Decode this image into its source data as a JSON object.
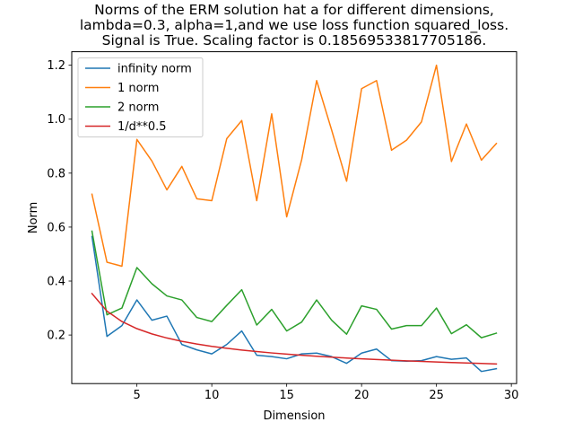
{
  "chart_data": {
    "type": "line",
    "title": [
      "Norms of the ERM solution hat a for different dimensions,",
      "lambda=0.3, alpha=1,and we use loss function squared_loss.",
      "Signal is True. Scaling factor is 0.18569533817705186."
    ],
    "xlabel": "Dimension",
    "ylabel": "Norm",
    "xlim": [
      0.65,
      30.35
    ],
    "ylim": [
      0.02,
      1.25
    ],
    "xticks": [
      5,
      10,
      15,
      20,
      25,
      30
    ],
    "yticks": [
      0.2,
      0.4,
      0.6,
      0.8,
      1.0,
      1.2
    ],
    "xtick_labels": [
      "5",
      "10",
      "15",
      "20",
      "25",
      "30"
    ],
    "ytick_labels": [
      "0.2",
      "0.4",
      "0.6",
      "0.8",
      "1.0",
      "1.2"
    ],
    "grid": false,
    "legend_position": "top-left",
    "x": [
      2,
      3,
      4,
      5,
      6,
      7,
      8,
      9,
      10,
      11,
      12,
      13,
      14,
      15,
      16,
      17,
      18,
      19,
      20,
      21,
      22,
      23,
      24,
      25,
      26,
      27,
      28,
      29
    ],
    "series": [
      {
        "name": "infinity norm",
        "color": "#1f77b4",
        "values": [
          0.565,
          0.195,
          0.235,
          0.33,
          0.255,
          0.27,
          0.165,
          0.145,
          0.13,
          0.165,
          0.215,
          0.125,
          0.12,
          0.112,
          0.13,
          0.133,
          0.12,
          0.095,
          0.133,
          0.148,
          0.105,
          0.103,
          0.105,
          0.12,
          0.11,
          0.115,
          0.065,
          0.075
        ]
      },
      {
        "name": "1 norm",
        "color": "#ff7f0e",
        "values": [
          0.722,
          0.47,
          0.455,
          0.925,
          0.845,
          0.738,
          0.825,
          0.705,
          0.698,
          0.928,
          0.995,
          0.698,
          1.02,
          0.638,
          0.85,
          1.143,
          0.96,
          0.77,
          1.113,
          1.143,
          0.885,
          0.922,
          0.99,
          1.2,
          0.843,
          0.982,
          0.848,
          0.91
        ]
      },
      {
        "name": "2 norm",
        "color": "#2ca02c",
        "values": [
          0.585,
          0.275,
          0.3,
          0.45,
          0.39,
          0.345,
          0.33,
          0.265,
          0.25,
          0.31,
          0.368,
          0.237,
          0.295,
          0.215,
          0.248,
          0.33,
          0.255,
          0.203,
          0.308,
          0.295,
          0.222,
          0.235,
          0.235,
          0.3,
          0.205,
          0.238,
          0.19,
          0.207
        ]
      },
      {
        "name": "1/d**0.5",
        "color": "#d62728",
        "values": [
          0.3536,
          0.2887,
          0.25,
          0.2236,
          0.2041,
          0.189,
          0.1768,
          0.1667,
          0.1581,
          0.1508,
          0.1443,
          0.1387,
          0.1336,
          0.1291,
          0.125,
          0.1213,
          0.1179,
          0.1147,
          0.1118,
          0.1091,
          0.1066,
          0.1043,
          0.1021,
          0.1,
          0.0981,
          0.0962,
          0.0945,
          0.0928
        ]
      }
    ]
  }
}
